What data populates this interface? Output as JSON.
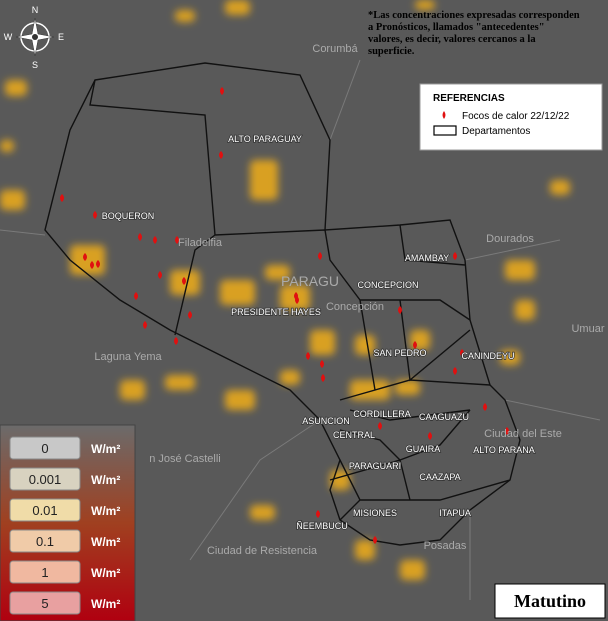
{
  "compass": {
    "north": "N",
    "south": "S",
    "east": "E",
    "west": "W"
  },
  "note": "*Las concentraciones expresadas corresponden a Pronósticos, llamados \"antecedentes\" valores, es decir, valores cercanos a la superficie.",
  "legend": {
    "title": "REFERENCIAS",
    "items": [
      "Focos de calor 22/12/22",
      "Departamentos"
    ]
  },
  "departments": [
    "ALTO PARAGUAY",
    "BOQUERON",
    "PRESIDENTE HAYES",
    "AMAMBAY",
    "CONCEPCION",
    "SAN PEDRO",
    "CANINDEYU",
    "CORDILLERA",
    "CAAGUAZU",
    "ASUNCION",
    "CENTRAL",
    "GUAIRA",
    "ALTO PARANA",
    "PARAGUARI",
    "CAAZAPA",
    "MISIONES",
    "ITAPUA",
    "ÑEEMBUCU"
  ],
  "places": [
    "Corumbá",
    "Dourados",
    "Umuar",
    "Ciudad del Este",
    "Laguna Yema",
    "n José Castelli",
    "Ciudad de Resistencia",
    "Posadas",
    "Filadelfia",
    "PARAGU",
    "Concepción"
  ],
  "scale": {
    "unit": "W/m²",
    "levels": [
      0,
      0.001,
      0.01,
      0.1,
      1,
      5
    ]
  },
  "period": "Matutino"
}
